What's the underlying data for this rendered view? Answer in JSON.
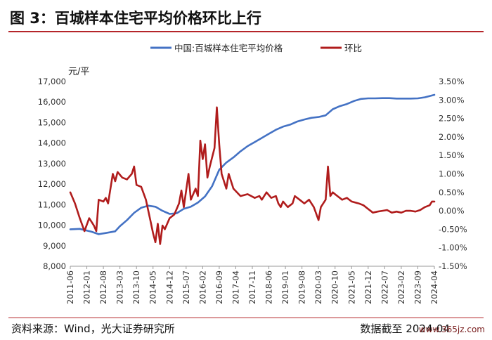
{
  "header": {
    "title": "图 3：百城样本住宅平均价格环比上行"
  },
  "footer": {
    "source": "资料来源：Wind，光大证券研究所",
    "date_note": "数据截至 2024-04"
  },
  "watermark": "www.365jz.com",
  "colors": {
    "price": "#4472c4",
    "mom": "#b01c1c",
    "rule": "#b5262a"
  },
  "chart_data": {
    "type": "line",
    "title": "",
    "left_unit": "元/平",
    "legend": [
      "中国:百城样本住宅平均价格",
      "环比"
    ],
    "y_left": {
      "min": 8000,
      "max": 17000,
      "ticks": [
        "8,000",
        "9,000",
        "10,000",
        "11,000",
        "12,000",
        "13,000",
        "14,000",
        "15,000",
        "16,000",
        "17,000"
      ]
    },
    "y_right": {
      "min": -1.5,
      "max": 3.5,
      "ticks": [
        "-1.50%",
        "-1.00%",
        "-0.50%",
        "0.00%",
        "0.50%",
        "1.00%",
        "1.50%",
        "2.00%",
        "2.50%",
        "3.00%",
        "3.50%"
      ]
    },
    "x_range": [
      "2011-06",
      "2024-04"
    ],
    "x_ticks": [
      "2011-06",
      "2012-01",
      "2012-08",
      "2013-03",
      "2013-10",
      "2014-05",
      "2014-12",
      "2015-07",
      "2016-02",
      "2016-09",
      "2017-04",
      "2017-11",
      "2018-06",
      "2019-01",
      "2019-08",
      "2020-03",
      "2020-10",
      "2021-05",
      "2021-12",
      "2022-07",
      "2023-02",
      "2023-09",
      "2024-04"
    ],
    "series": [
      {
        "name": "中国:百城样本住宅平均价格",
        "axis": "left",
        "points": [
          [
            "2011-06",
            9800
          ],
          [
            "2011-10",
            9820
          ],
          [
            "2012-03",
            9680
          ],
          [
            "2012-06",
            9560
          ],
          [
            "2012-09",
            9620
          ],
          [
            "2013-01",
            9700
          ],
          [
            "2013-03",
            9950
          ],
          [
            "2013-06",
            10250
          ],
          [
            "2013-09",
            10600
          ],
          [
            "2013-12",
            10850
          ],
          [
            "2014-03",
            10950
          ],
          [
            "2014-06",
            10900
          ],
          [
            "2014-09",
            10700
          ],
          [
            "2014-12",
            10550
          ],
          [
            "2015-03",
            10580
          ],
          [
            "2015-06",
            10800
          ],
          [
            "2015-09",
            10900
          ],
          [
            "2015-12",
            11100
          ],
          [
            "2016-03",
            11400
          ],
          [
            "2016-06",
            11900
          ],
          [
            "2016-09",
            12700
          ],
          [
            "2016-12",
            13050
          ],
          [
            "2017-03",
            13300
          ],
          [
            "2017-06",
            13600
          ],
          [
            "2017-09",
            13850
          ],
          [
            "2017-12",
            14050
          ],
          [
            "2018-03",
            14250
          ],
          [
            "2018-06",
            14450
          ],
          [
            "2018-09",
            14650
          ],
          [
            "2018-12",
            14800
          ],
          [
            "2019-03",
            14900
          ],
          [
            "2019-06",
            15050
          ],
          [
            "2019-09",
            15150
          ],
          [
            "2019-12",
            15230
          ],
          [
            "2020-03",
            15270
          ],
          [
            "2020-06",
            15350
          ],
          [
            "2020-09",
            15650
          ],
          [
            "2020-12",
            15800
          ],
          [
            "2021-03",
            15900
          ],
          [
            "2021-06",
            16050
          ],
          [
            "2021-09",
            16150
          ],
          [
            "2021-12",
            16180
          ],
          [
            "2022-03",
            16180
          ],
          [
            "2022-06",
            16190
          ],
          [
            "2022-09",
            16190
          ],
          [
            "2022-12",
            16170
          ],
          [
            "2023-03",
            16170
          ],
          [
            "2023-06",
            16170
          ],
          [
            "2023-09",
            16180
          ],
          [
            "2023-12",
            16230
          ],
          [
            "2024-04",
            16350
          ]
        ]
      },
      {
        "name": "环比",
        "axis": "right",
        "points": [
          [
            "2011-06",
            0.5
          ],
          [
            "2011-08",
            0.2
          ],
          [
            "2011-10",
            -0.2
          ],
          [
            "2011-12",
            -0.55
          ],
          [
            "2012-02",
            -0.2
          ],
          [
            "2012-04",
            -0.4
          ],
          [
            "2012-05",
            -0.55
          ],
          [
            "2012-06",
            0.3
          ],
          [
            "2012-08",
            0.25
          ],
          [
            "2012-09",
            0.35
          ],
          [
            "2012-10",
            0.2
          ],
          [
            "2012-12",
            1.0
          ],
          [
            "2013-01",
            0.8
          ],
          [
            "2013-02",
            1.05
          ],
          [
            "2013-04",
            0.9
          ],
          [
            "2013-06",
            0.85
          ],
          [
            "2013-08",
            1.0
          ],
          [
            "2013-09",
            1.2
          ],
          [
            "2013-10",
            0.7
          ],
          [
            "2013-12",
            0.65
          ],
          [
            "2014-02",
            0.3
          ],
          [
            "2014-04",
            -0.3
          ],
          [
            "2014-05",
            -0.6
          ],
          [
            "2014-06",
            -0.85
          ],
          [
            "2014-07",
            -0.35
          ],
          [
            "2014-08",
            -0.9
          ],
          [
            "2014-09",
            -0.4
          ],
          [
            "2014-10",
            -0.5
          ],
          [
            "2014-12",
            -0.2
          ],
          [
            "2015-02",
            -0.1
          ],
          [
            "2015-04",
            0.2
          ],
          [
            "2015-05",
            0.55
          ],
          [
            "2015-06",
            0.1
          ],
          [
            "2015-08",
            1.0
          ],
          [
            "2015-09",
            0.3
          ],
          [
            "2015-11",
            0.6
          ],
          [
            "2015-12",
            0.4
          ],
          [
            "2016-01",
            1.9
          ],
          [
            "2016-02",
            1.4
          ],
          [
            "2016-03",
            1.8
          ],
          [
            "2016-04",
            0.9
          ],
          [
            "2016-05",
            1.2
          ],
          [
            "2016-07",
            1.7
          ],
          [
            "2016-08",
            2.8
          ],
          [
            "2016-09",
            1.8
          ],
          [
            "2016-10",
            1.0
          ],
          [
            "2016-12",
            0.6
          ],
          [
            "2017-01",
            1.0
          ],
          [
            "2017-03",
            0.6
          ],
          [
            "2017-06",
            0.4
          ],
          [
            "2017-09",
            0.45
          ],
          [
            "2017-12",
            0.35
          ],
          [
            "2018-02",
            0.4
          ],
          [
            "2018-03",
            0.3
          ],
          [
            "2018-05",
            0.5
          ],
          [
            "2018-07",
            0.35
          ],
          [
            "2018-09",
            0.4
          ],
          [
            "2018-10",
            0.2
          ],
          [
            "2018-11",
            0.1
          ],
          [
            "2018-12",
            0.25
          ],
          [
            "2019-02",
            0.1
          ],
          [
            "2019-04",
            0.2
          ],
          [
            "2019-05",
            0.4
          ],
          [
            "2019-07",
            0.3
          ],
          [
            "2019-09",
            0.2
          ],
          [
            "2019-11",
            0.3
          ],
          [
            "2020-01",
            0.1
          ],
          [
            "2020-03",
            -0.25
          ],
          [
            "2020-04",
            0.1
          ],
          [
            "2020-06",
            0.3
          ],
          [
            "2020-07",
            1.2
          ],
          [
            "2020-08",
            0.4
          ],
          [
            "2020-09",
            0.5
          ],
          [
            "2020-11",
            0.4
          ],
          [
            "2021-01",
            0.3
          ],
          [
            "2021-03",
            0.35
          ],
          [
            "2021-05",
            0.25
          ],
          [
            "2021-08",
            0.2
          ],
          [
            "2021-10",
            0.15
          ],
          [
            "2021-12",
            0.05
          ],
          [
            "2022-02",
            -0.05
          ],
          [
            "2022-04",
            -0.02
          ],
          [
            "2022-06",
            0.0
          ],
          [
            "2022-08",
            0.02
          ],
          [
            "2022-10",
            -0.05
          ],
          [
            "2022-12",
            -0.02
          ],
          [
            "2023-02",
            -0.05
          ],
          [
            "2023-04",
            0.0
          ],
          [
            "2023-06",
            0.0
          ],
          [
            "2023-08",
            -0.02
          ],
          [
            "2023-10",
            0.02
          ],
          [
            "2023-12",
            0.1
          ],
          [
            "2024-02",
            0.15
          ],
          [
            "2024-03",
            0.25
          ],
          [
            "2024-04",
            0.25
          ]
        ]
      }
    ]
  }
}
